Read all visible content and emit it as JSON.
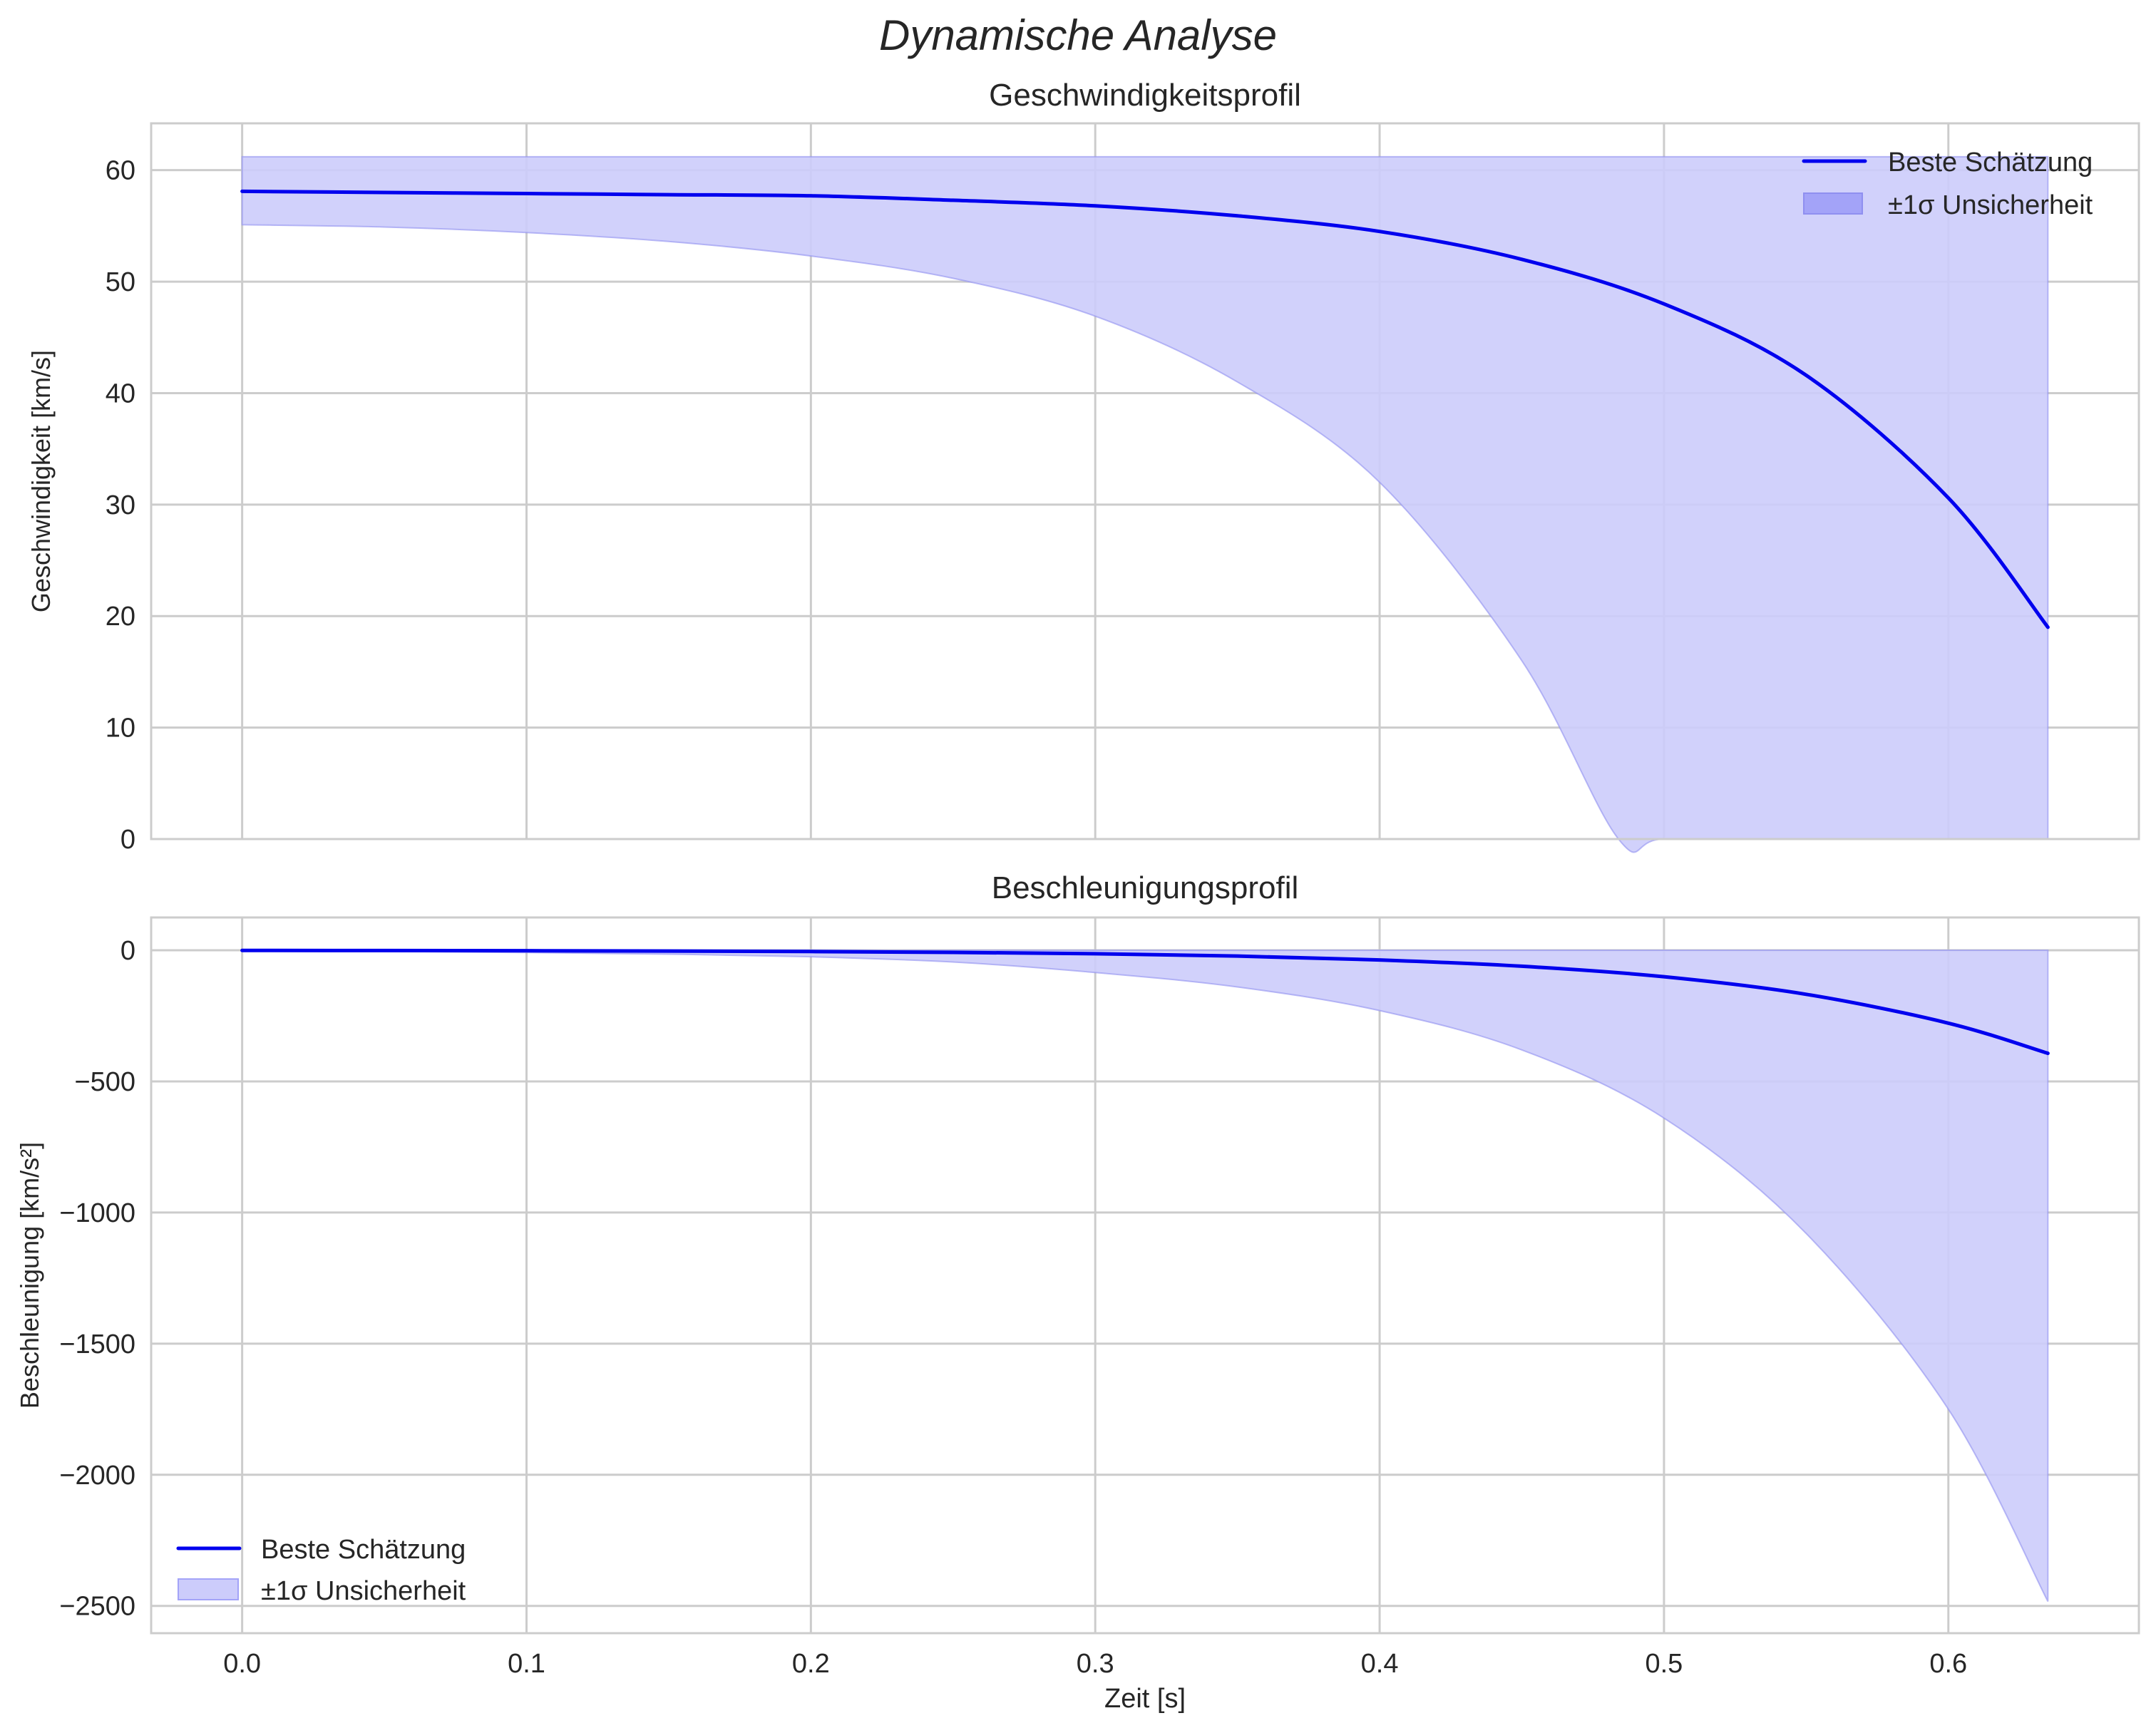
{
  "figure": {
    "suptitle": "Dynamische Analyse",
    "colors": {
      "line": "#0000ee",
      "band_fill": "#ccccfb",
      "band_edge": "#8f8ff0",
      "grid": "#cccccc",
      "text": "#262626"
    }
  },
  "chart_data": [
    {
      "type": "line",
      "title": "Geschwindigkeitsprofil",
      "xlabel": "",
      "ylabel": "Geschwindigkeit [km/s]",
      "xlim": [
        -0.032,
        0.667
      ],
      "ylim": [
        0,
        64.2
      ],
      "xticks": [
        "0.0",
        "0.1",
        "0.2",
        "0.3",
        "0.4",
        "0.5",
        "0.6"
      ],
      "yticks": [
        "0",
        "10",
        "20",
        "30",
        "40",
        "50",
        "60"
      ],
      "ytick_values": [
        0,
        10,
        20,
        30,
        40,
        50,
        60
      ],
      "grid": true,
      "legend": {
        "position": "upper right",
        "entries": [
          "Beste Schätzung",
          "±1σ Unsicherheit"
        ]
      },
      "series": [
        {
          "name": "Beste Schätzung",
          "x": [
            0.0,
            0.05,
            0.1,
            0.15,
            0.2,
            0.25,
            0.3,
            0.35,
            0.4,
            0.45,
            0.5,
            0.55,
            0.6,
            0.635
          ],
          "values": [
            58.1,
            58.0,
            57.9,
            57.8,
            57.7,
            57.3,
            56.8,
            55.9,
            54.5,
            52.0,
            48.0,
            41.6,
            30.6,
            19.0
          ]
        },
        {
          "name": "±1σ Unsicherheit (untere Grenze)",
          "x": [
            0.0,
            0.05,
            0.1,
            0.15,
            0.2,
            0.25,
            0.3,
            0.35,
            0.4,
            0.45,
            0.484,
            0.5,
            0.55,
            0.6,
            0.635
          ],
          "values": [
            55.1,
            54.9,
            54.4,
            53.6,
            52.3,
            50.3,
            46.9,
            41.0,
            32.0,
            16.0,
            0.0,
            0.0,
            0.0,
            0.0,
            0.0
          ]
        },
        {
          "name": "±1σ Unsicherheit (obere Grenze)",
          "x": [
            0.0,
            0.635
          ],
          "values": [
            61.2,
            61.2
          ]
        }
      ]
    },
    {
      "type": "line",
      "title": "Beschleunigungsprofil",
      "xlabel": "Zeit [s]",
      "ylabel": "Beschleunigung [km/s²]",
      "xlim": [
        -0.032,
        0.667
      ],
      "ylim": [
        -2604,
        125
      ],
      "xticks": [
        "0.0",
        "0.1",
        "0.2",
        "0.3",
        "0.4",
        "0.5",
        "0.6"
      ],
      "yticks": [
        "0",
        "−500",
        "−1000",
        "−1500",
        "−2000",
        "−2500"
      ],
      "ytick_values": [
        0,
        -500,
        -1000,
        -1500,
        -2000,
        -2500
      ],
      "grid": true,
      "legend": {
        "position": "lower left",
        "entries": [
          "Beste Schätzung",
          "±1σ Unsicherheit"
        ]
      },
      "series": [
        {
          "name": "Beste Schätzung",
          "x": [
            0.0,
            0.05,
            0.1,
            0.15,
            0.2,
            0.25,
            0.3,
            0.35,
            0.4,
            0.45,
            0.5,
            0.55,
            0.6,
            0.635
          ],
          "values": [
            -0.7,
            -1.1,
            -1.8,
            -3.0,
            -4.9,
            -8.1,
            -13.4,
            -22.2,
            -37.0,
            -61.0,
            -101,
            -168,
            -278,
            -393
          ]
        },
        {
          "name": "±1σ Unsicherheit (untere Grenze)",
          "x": [
            0.0,
            0.05,
            0.1,
            0.15,
            0.2,
            0.25,
            0.3,
            0.35,
            0.4,
            0.45,
            0.5,
            0.55,
            0.6,
            0.635
          ],
          "values": [
            -1,
            -4,
            -9,
            -15,
            -25,
            -45,
            -85,
            -140,
            -230,
            -380,
            -640,
            -1080,
            -1750,
            -2483
          ]
        },
        {
          "name": "±1σ Unsicherheit (obere Grenze)",
          "x": [
            0.0,
            0.635
          ],
          "values": [
            0,
            0
          ]
        }
      ]
    }
  ]
}
